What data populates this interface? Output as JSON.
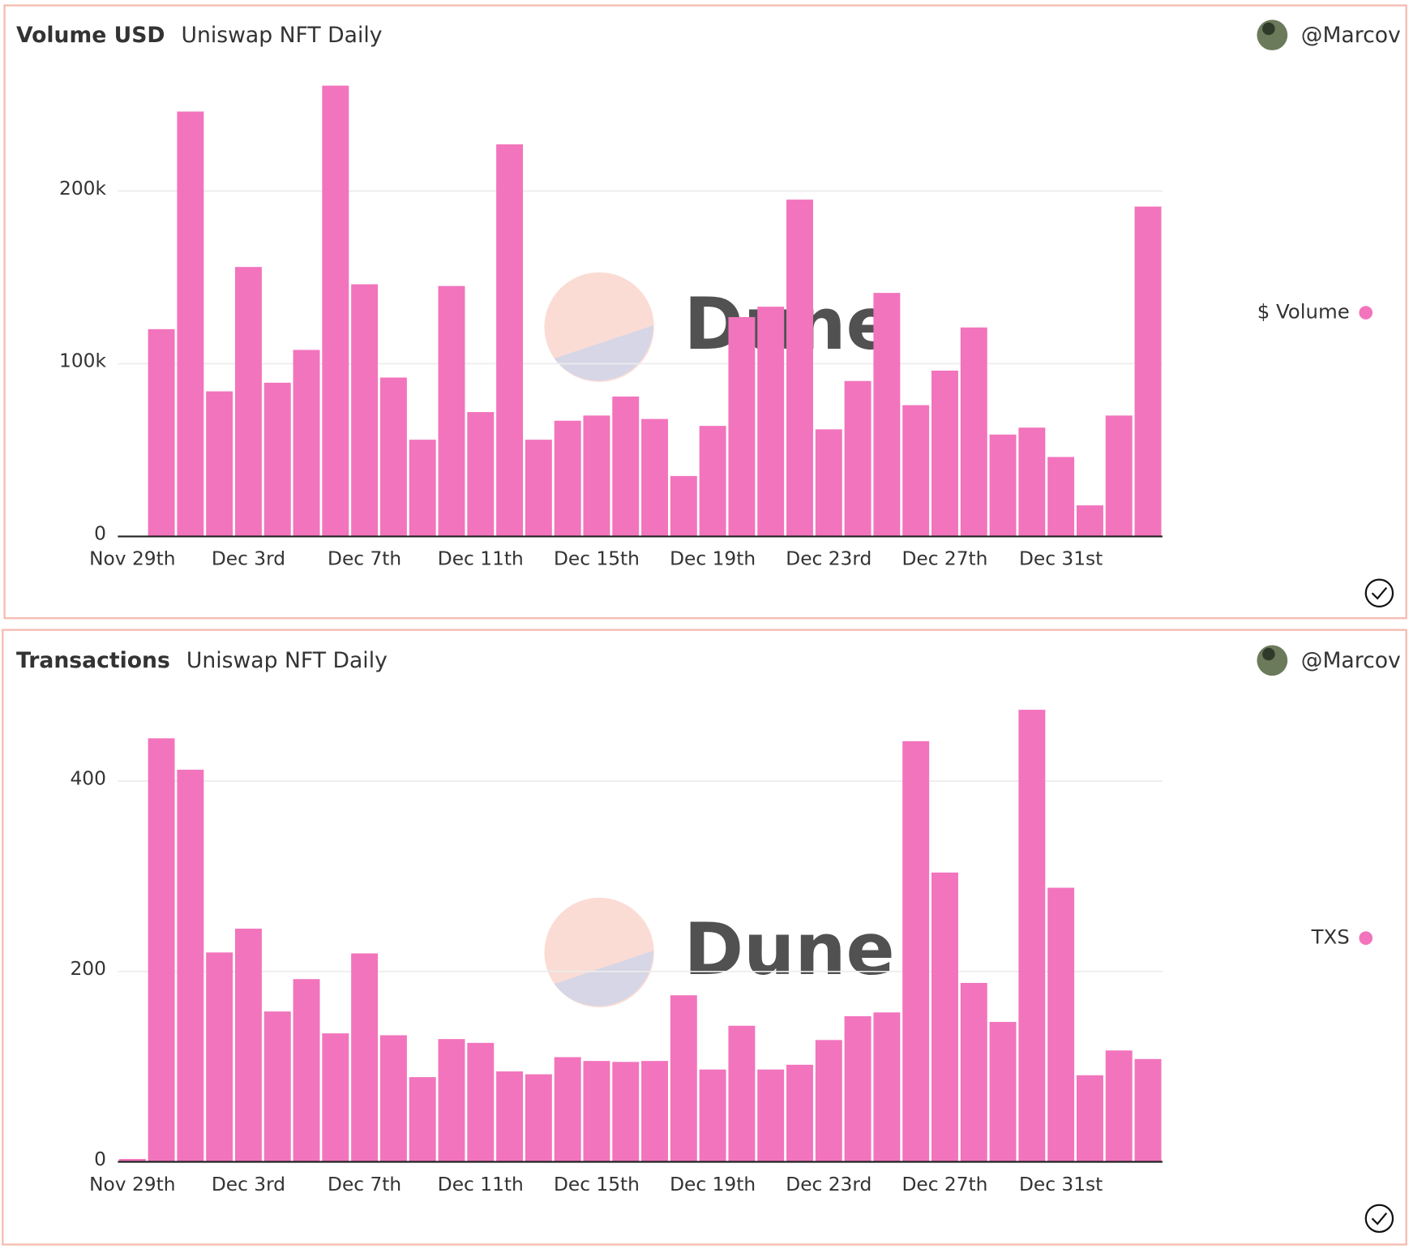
{
  "chart_data": [
    {
      "type": "bar",
      "title": "Volume USD",
      "subtitle": "Uniswap NFT Daily",
      "author": "@Marcov",
      "watermark": "Dune",
      "categories": [
        "Nov 29th",
        null,
        null,
        null,
        "Dec 3rd",
        null,
        null,
        null,
        "Dec 7th",
        null,
        null,
        null,
        "Dec 11th",
        null,
        null,
        null,
        "Dec 15th",
        null,
        null,
        null,
        "Dec 19th",
        null,
        null,
        null,
        "Dec 23rd",
        null,
        null,
        null,
        "Dec 27th",
        null,
        null,
        null,
        "Dec 31st",
        null,
        null,
        null
      ],
      "series": [
        {
          "name": "$ Volume",
          "color": "#f274bc",
          "values": [
            0,
            120000,
            246000,
            84000,
            156000,
            89000,
            108000,
            261000,
            146000,
            92000,
            56000,
            145000,
            72000,
            227000,
            56000,
            67000,
            70000,
            81000,
            68000,
            35000,
            64000,
            127000,
            133000,
            195000,
            62000,
            90000,
            141000,
            76000,
            96000,
            121000,
            59000,
            63000,
            46000,
            18000,
            70000,
            191000
          ]
        }
      ],
      "ylim": [
        0,
        270000
      ],
      "yticks": [
        0,
        {
          "value": 100000,
          "label": "100k"
        },
        {
          "value": 200000,
          "label": "200k"
        }
      ],
      "grid": true
    },
    {
      "type": "bar",
      "title": "Transactions",
      "subtitle": "Uniswap NFT Daily",
      "author": "@Marcov",
      "watermark": "Dune",
      "categories": [
        "Nov 29th",
        null,
        null,
        null,
        "Dec 3rd",
        null,
        null,
        null,
        "Dec 7th",
        null,
        null,
        null,
        "Dec 11th",
        null,
        null,
        null,
        "Dec 15th",
        null,
        null,
        null,
        "Dec 19th",
        null,
        null,
        null,
        "Dec 23rd",
        null,
        null,
        null,
        "Dec 27th",
        null,
        null,
        null,
        "Dec 31st",
        null,
        null,
        null
      ],
      "series": [
        {
          "name": "TXS",
          "color": "#f274bc",
          "values": [
            3,
            445,
            412,
            220,
            245,
            158,
            192,
            135,
            219,
            133,
            89,
            129,
            125,
            95,
            92,
            110,
            106,
            105,
            106,
            175,
            97,
            143,
            97,
            102,
            128,
            153,
            157,
            442,
            304,
            188,
            147,
            475,
            288,
            91,
            117,
            108
          ]
        }
      ],
      "ylim": [
        0,
        490
      ],
      "yticks": [
        0,
        200,
        400
      ],
      "grid": true
    }
  ]
}
